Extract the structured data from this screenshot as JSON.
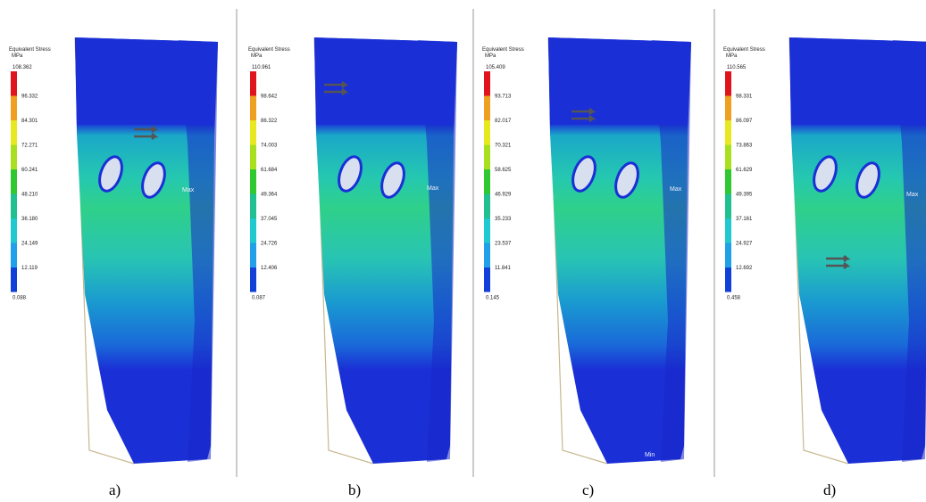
{
  "panels": [
    {
      "legend_title": "Equivalent Stress",
      "unit": "MPa",
      "labels": [
        "108.362",
        "96.332",
        "84.301",
        "72.271",
        "60.241",
        "48.210",
        "36.180",
        "24.149",
        "12.119",
        "0.088"
      ],
      "max_label": "Max",
      "caption": "a)"
    },
    {
      "legend_title": "Equivalent Stress",
      "unit": "MPa",
      "labels": [
        "110.961",
        "98.642",
        "86.322",
        "74.003",
        "61.684",
        "49.364",
        "37.045",
        "24.726",
        "12.406",
        "0.087"
      ],
      "max_label": "Max",
      "caption": "b)"
    },
    {
      "legend_title": "Equivalent Stress",
      "unit": "MPa",
      "labels": [
        "105.409",
        "93.713",
        "82.017",
        "70.321",
        "58.625",
        "46.929",
        "35.233",
        "23.537",
        "11.841",
        "0.145"
      ],
      "max_label": "Max",
      "min_label": "Min",
      "caption": "c)"
    },
    {
      "legend_title": "Equivalent Stress",
      "unit": "MPa",
      "labels": [
        "110.565",
        "98.331",
        "86.097",
        "73.863",
        "61.629",
        "49.395",
        "37.161",
        "24.927",
        "12.692",
        "0.458"
      ],
      "max_label": "Max",
      "caption": "d)"
    }
  ]
}
